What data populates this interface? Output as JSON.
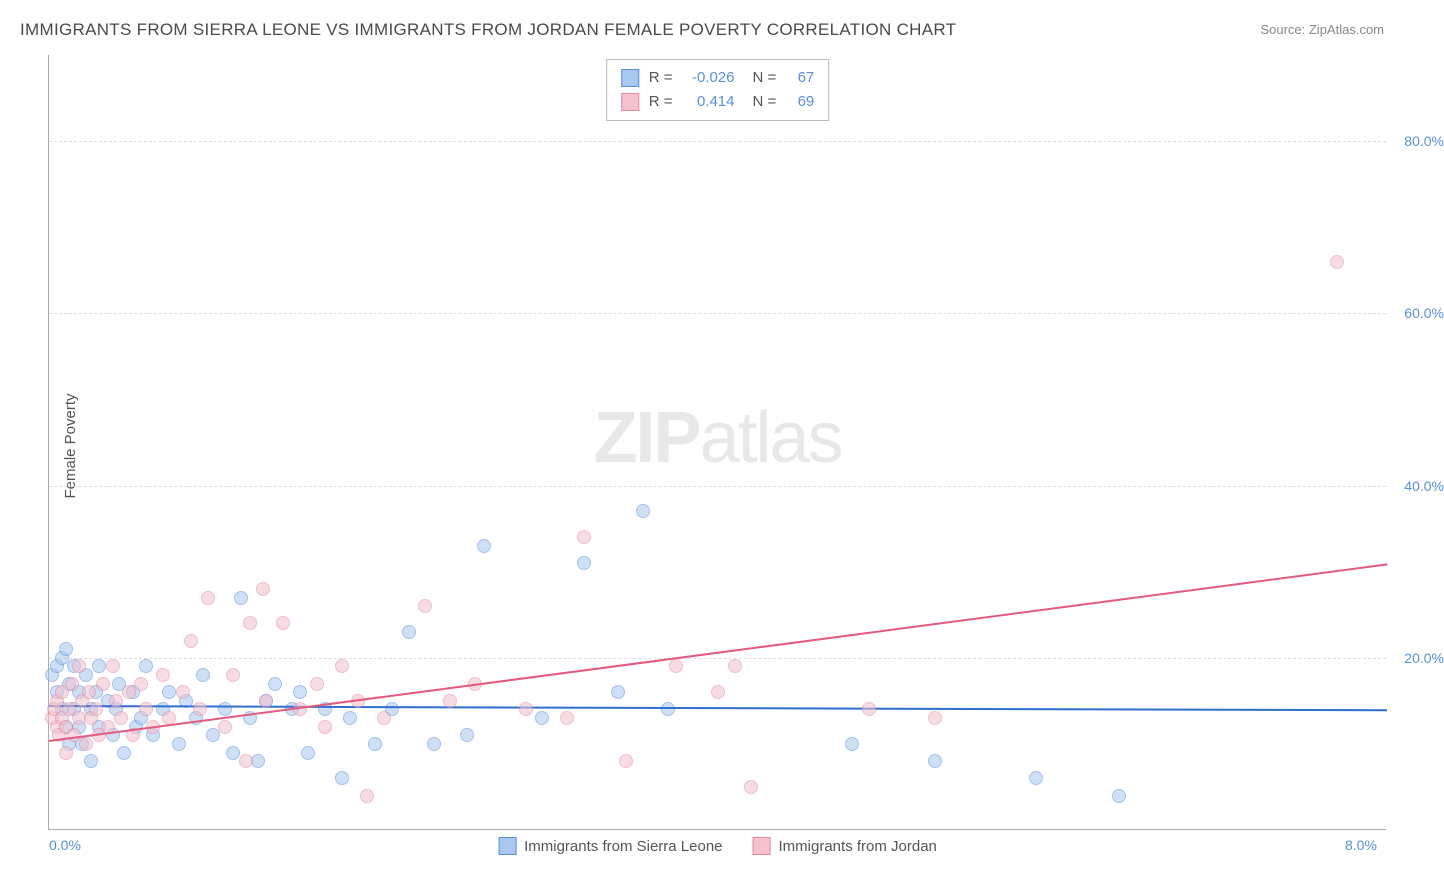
{
  "title": "IMMIGRANTS FROM SIERRA LEONE VS IMMIGRANTS FROM JORDAN FEMALE POVERTY CORRELATION CHART",
  "source": "Source: ZipAtlas.com",
  "y_axis_label": "Female Poverty",
  "watermark_a": "ZIP",
  "watermark_b": "atlas",
  "chart": {
    "type": "scatter",
    "xlim": [
      0.0,
      8.0
    ],
    "ylim": [
      0.0,
      90.0
    ],
    "x_ticks": [
      {
        "v": 0.0,
        "l": "0.0%"
      },
      {
        "v": 8.0,
        "l": "8.0%"
      }
    ],
    "y_ticks": [
      {
        "v": 20.0,
        "l": "20.0%"
      },
      {
        "v": 40.0,
        "l": "40.0%"
      },
      {
        "v": 60.0,
        "l": "60.0%"
      },
      {
        "v": 80.0,
        "l": "80.0%"
      }
    ],
    "background_color": "#ffffff",
    "grid_color": "#dddddd",
    "marker_radius": 7,
    "marker_opacity": 0.55,
    "series": [
      {
        "id": "sierra_leone",
        "label": "Immigrants from Sierra Leone",
        "color_fill": "#a9c8ef",
        "color_stroke": "#5a8fd8",
        "trend_color": "#2f6fd0",
        "R": "-0.026",
        "N": "67",
        "trend": {
          "x1": 0.0,
          "y1": 14.5,
          "x2": 8.0,
          "y2": 14.0
        },
        "points": [
          [
            0.02,
            18
          ],
          [
            0.05,
            19
          ],
          [
            0.05,
            16
          ],
          [
            0.08,
            20
          ],
          [
            0.08,
            14
          ],
          [
            0.1,
            21
          ],
          [
            0.1,
            12
          ],
          [
            0.12,
            17
          ],
          [
            0.12,
            10
          ],
          [
            0.15,
            14
          ],
          [
            0.15,
            19
          ],
          [
            0.18,
            12
          ],
          [
            0.18,
            16
          ],
          [
            0.2,
            10
          ],
          [
            0.22,
            18
          ],
          [
            0.25,
            14
          ],
          [
            0.25,
            8
          ],
          [
            0.28,
            16
          ],
          [
            0.3,
            12
          ],
          [
            0.3,
            19
          ],
          [
            0.35,
            15
          ],
          [
            0.38,
            11
          ],
          [
            0.4,
            14
          ],
          [
            0.42,
            17
          ],
          [
            0.45,
            9
          ],
          [
            0.5,
            16
          ],
          [
            0.52,
            12
          ],
          [
            0.55,
            13
          ],
          [
            0.58,
            19
          ],
          [
            0.62,
            11
          ],
          [
            0.68,
            14
          ],
          [
            0.72,
            16
          ],
          [
            0.78,
            10
          ],
          [
            0.82,
            15
          ],
          [
            0.88,
            13
          ],
          [
            0.92,
            18
          ],
          [
            0.98,
            11
          ],
          [
            1.05,
            14
          ],
          [
            1.1,
            9
          ],
          [
            1.15,
            27
          ],
          [
            1.2,
            13
          ],
          [
            1.25,
            8
          ],
          [
            1.3,
            15
          ],
          [
            1.35,
            17
          ],
          [
            1.45,
            14
          ],
          [
            1.5,
            16
          ],
          [
            1.55,
            9
          ],
          [
            1.65,
            14
          ],
          [
            1.75,
            6
          ],
          [
            1.8,
            13
          ],
          [
            1.95,
            10
          ],
          [
            2.05,
            14
          ],
          [
            2.15,
            23
          ],
          [
            2.3,
            10
          ],
          [
            2.5,
            11
          ],
          [
            2.6,
            33
          ],
          [
            2.95,
            13
          ],
          [
            3.2,
            31
          ],
          [
            3.4,
            16
          ],
          [
            3.55,
            37
          ],
          [
            3.7,
            14
          ],
          [
            4.8,
            10
          ],
          [
            5.3,
            8
          ],
          [
            5.9,
            6
          ],
          [
            6.4,
            4
          ]
        ]
      },
      {
        "id": "jordan",
        "label": "Immigrants from Jordan",
        "color_fill": "#f4c1cd",
        "color_stroke": "#e08aa0",
        "trend_color": "#e45a7e",
        "R": "0.414",
        "N": "69",
        "trend": {
          "x1": 0.0,
          "y1": 10.5,
          "x2": 8.0,
          "y2": 31.0
        },
        "points": [
          [
            0.02,
            13
          ],
          [
            0.03,
            14
          ],
          [
            0.05,
            12
          ],
          [
            0.05,
            15
          ],
          [
            0.06,
            11
          ],
          [
            0.08,
            13
          ],
          [
            0.08,
            16
          ],
          [
            0.1,
            12
          ],
          [
            0.1,
            9
          ],
          [
            0.12,
            14
          ],
          [
            0.14,
            17
          ],
          [
            0.15,
            11
          ],
          [
            0.18,
            13
          ],
          [
            0.18,
            19
          ],
          [
            0.2,
            15
          ],
          [
            0.22,
            10
          ],
          [
            0.24,
            16
          ],
          [
            0.25,
            13
          ],
          [
            0.28,
            14
          ],
          [
            0.3,
            11
          ],
          [
            0.32,
            17
          ],
          [
            0.35,
            12
          ],
          [
            0.38,
            19
          ],
          [
            0.4,
            15
          ],
          [
            0.43,
            13
          ],
          [
            0.48,
            16
          ],
          [
            0.5,
            11
          ],
          [
            0.55,
            17
          ],
          [
            0.58,
            14
          ],
          [
            0.62,
            12
          ],
          [
            0.68,
            18
          ],
          [
            0.72,
            13
          ],
          [
            0.8,
            16
          ],
          [
            0.85,
            22
          ],
          [
            0.9,
            14
          ],
          [
            0.95,
            27
          ],
          [
            1.05,
            12
          ],
          [
            1.1,
            18
          ],
          [
            1.18,
            8
          ],
          [
            1.2,
            24
          ],
          [
            1.28,
            28
          ],
          [
            1.3,
            15
          ],
          [
            1.4,
            24
          ],
          [
            1.5,
            14
          ],
          [
            1.6,
            17
          ],
          [
            1.65,
            12
          ],
          [
            1.75,
            19
          ],
          [
            1.85,
            15
          ],
          [
            1.9,
            4
          ],
          [
            2.0,
            13
          ],
          [
            2.25,
            26
          ],
          [
            2.4,
            15
          ],
          [
            2.55,
            17
          ],
          [
            2.85,
            14
          ],
          [
            3.1,
            13
          ],
          [
            3.2,
            34
          ],
          [
            3.45,
            8
          ],
          [
            3.75,
            19
          ],
          [
            4.0,
            16
          ],
          [
            4.1,
            19
          ],
          [
            4.2,
            5
          ],
          [
            4.9,
            14
          ],
          [
            5.3,
            13
          ],
          [
            7.7,
            66
          ]
        ]
      }
    ]
  },
  "stats_box": {
    "R_label": "R =",
    "N_label": "N ="
  }
}
